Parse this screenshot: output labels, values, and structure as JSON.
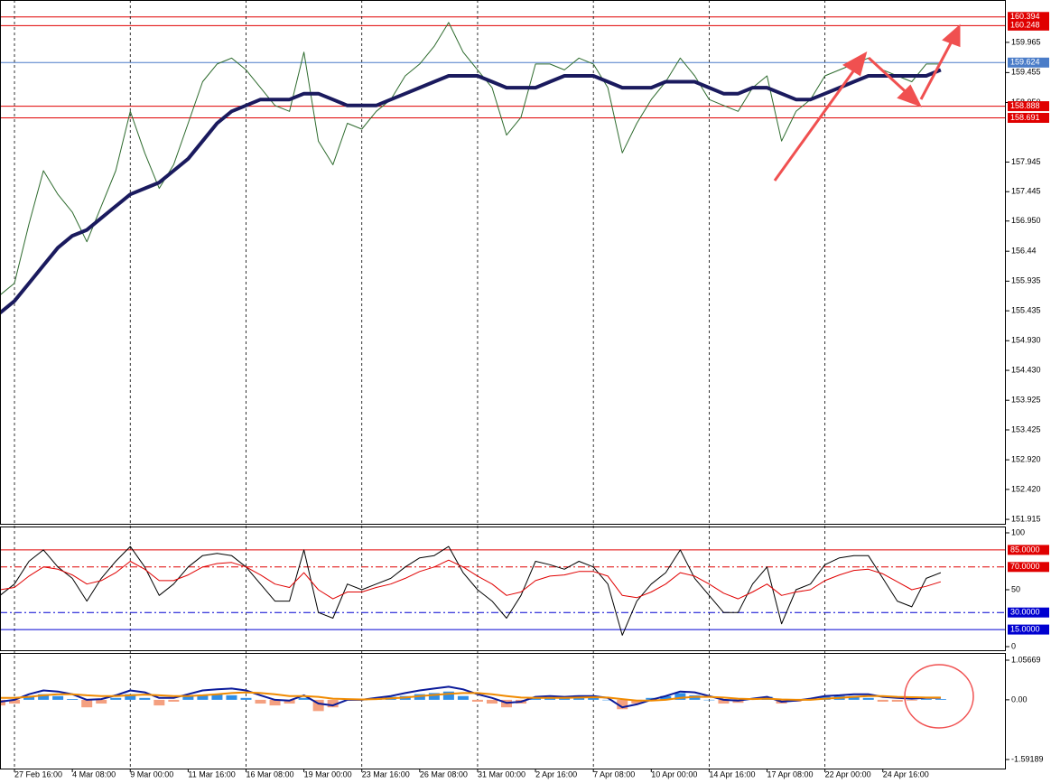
{
  "chart_data": [
    {
      "type": "line",
      "xlim": [
        0,
        69.5
      ],
      "ylim": [
        151.84,
        160.68
      ],
      "grid": true,
      "yticks": [
        159.965,
        159.455,
        {
          "value": 158.95,
          "label": "158.950"
        },
        157.945,
        157.445,
        {
          "value": 156.95,
          "label": "156.950"
        },
        156.44,
        155.935,
        155.435,
        {
          "value": 154.93,
          "label": "154.930"
        },
        {
          "value": 154.43,
          "label": "154.430"
        },
        153.925,
        153.425,
        {
          "value": 152.92,
          "label": "152.920"
        },
        {
          "value": 152.42,
          "label": "152.420"
        },
        151.915
      ],
      "xticks": [
        {
          "value": 1,
          "label": "27 Feb 16:00"
        },
        {
          "value": 5,
          "label": "4 Mar 08:00"
        },
        {
          "value": 9,
          "label": "9 Mar 00:00"
        },
        {
          "value": 13,
          "label": "11 Mar 16:00"
        },
        {
          "value": 17,
          "label": "16 Mar 08:00"
        },
        {
          "value": 21,
          "label": "19 Mar 00:00"
        },
        {
          "value": 25,
          "label": "23 Mar 16:00"
        },
        {
          "value": 29,
          "label": "26 Mar 08:00"
        },
        {
          "value": 33,
          "label": "31 Mar 00:00"
        },
        {
          "value": 37,
          "label": "2 Apr 16:00"
        },
        {
          "value": 41,
          "label": "7 Apr 08:00"
        },
        {
          "value": 45,
          "label": "10 Apr 00:00"
        },
        {
          "value": 49,
          "label": "14 Apr 16:00"
        },
        {
          "value": 53,
          "label": "17 Apr 08:00"
        },
        {
          "value": 57,
          "label": "22 Apr 00:00"
        },
        {
          "value": 61,
          "label": "24 Apr 16:00"
        }
      ],
      "levels": [
        {
          "value": 160.394,
          "color": "#e00000"
        },
        {
          "value": 160.248,
          "color": "#e00000"
        },
        {
          "value": 159.624,
          "color": "#4a7cc8"
        },
        {
          "value": 158.888,
          "color": "#e00000"
        },
        {
          "value": 158.691,
          "color": "#e00000"
        }
      ],
      "series": [
        {
          "color": "#2e6b2e",
          "width": 1,
          "values": [
            155.7,
            155.9,
            156.9,
            157.8,
            157.4,
            157.1,
            156.6,
            157.2,
            157.8,
            158.8,
            158.1,
            157.5,
            157.9,
            158.6,
            159.3,
            159.6,
            159.7,
            159.5,
            159.2,
            158.9,
            158.8,
            159.8,
            158.3,
            157.9,
            158.6,
            158.5,
            158.8,
            159.0,
            159.4,
            159.6,
            159.9,
            160.3,
            159.8,
            159.5,
            159.2,
            158.4,
            158.7,
            159.6,
            159.6,
            159.5,
            159.7,
            159.6,
            159.2,
            158.1,
            158.6,
            159.0,
            159.3,
            159.7,
            159.4,
            159.0,
            158.9,
            158.8,
            159.2,
            159.4,
            158.3,
            158.8,
            159.0,
            159.4,
            159.5,
            159.6,
            159.7,
            159.5,
            159.4,
            159.3,
            159.6,
            159.6
          ]
        },
        {
          "color": "#1a1a5e",
          "width": 4,
          "values": [
            155.4,
            155.6,
            155.9,
            156.2,
            156.5,
            156.7,
            156.8,
            157.0,
            157.2,
            157.4,
            157.5,
            157.6,
            157.8,
            158.0,
            158.3,
            158.6,
            158.8,
            158.9,
            159.0,
            159.0,
            159.0,
            159.1,
            159.1,
            159.0,
            158.9,
            158.9,
            158.9,
            159.0,
            159.1,
            159.2,
            159.3,
            159.4,
            159.4,
            159.4,
            159.3,
            159.2,
            159.2,
            159.2,
            159.3,
            159.4,
            159.4,
            159.4,
            159.3,
            159.2,
            159.2,
            159.2,
            159.3,
            159.3,
            159.3,
            159.2,
            159.1,
            159.1,
            159.2,
            159.2,
            159.1,
            159.0,
            159.0,
            159.1,
            159.2,
            159.3,
            159.4,
            159.4,
            159.4,
            159.4,
            159.4,
            159.5
          ]
        }
      ]
    },
    {
      "type": "line",
      "xlim": [
        0,
        69.5
      ],
      "ylim": [
        0,
        100
      ],
      "yticks": [
        100,
        50,
        0
      ],
      "levels": [
        {
          "value": 85,
          "label": "85.0000",
          "color": "#e00000",
          "dash": "none"
        },
        {
          "value": 70,
          "label": "70.0000",
          "color": "#e00000",
          "dash": "8 3 2 3"
        },
        {
          "value": 30,
          "label": "30.0000",
          "color": "#0000d0",
          "dash": "8 3 2 3"
        },
        {
          "value": 15,
          "label": "15.0000",
          "color": "#0000d0",
          "dash": "none"
        }
      ],
      "series": [
        {
          "color": "#000000",
          "width": 1,
          "values": [
            45,
            55,
            75,
            85,
            70,
            60,
            40,
            60,
            75,
            88,
            70,
            45,
            55,
            70,
            80,
            82,
            80,
            70,
            55,
            40,
            40,
            85,
            30,
            25,
            55,
            50,
            55,
            60,
            70,
            78,
            80,
            88,
            65,
            50,
            40,
            25,
            45,
            75,
            72,
            68,
            75,
            70,
            55,
            10,
            40,
            55,
            65,
            85,
            60,
            45,
            30,
            30,
            55,
            70,
            20,
            50,
            55,
            72,
            78,
            80,
            80,
            60,
            40,
            35,
            60,
            65
          ]
        },
        {
          "color": "#e00000",
          "width": 1,
          "values": [
            50,
            52,
            62,
            70,
            68,
            63,
            55,
            58,
            65,
            75,
            68,
            58,
            58,
            63,
            70,
            73,
            74,
            70,
            63,
            55,
            52,
            65,
            50,
            42,
            48,
            48,
            52,
            55,
            60,
            66,
            70,
            76,
            70,
            62,
            55,
            45,
            48,
            58,
            62,
            63,
            66,
            66,
            62,
            45,
            43,
            48,
            55,
            65,
            62,
            55,
            47,
            42,
            48,
            55,
            45,
            48,
            50,
            58,
            63,
            67,
            68,
            64,
            57,
            50,
            53,
            57
          ]
        }
      ]
    },
    {
      "type": "line",
      "xlim": [
        0,
        69.5
      ],
      "ylim": [
        -1.59189,
        1.05669
      ],
      "yticks": [
        1.05669,
        {
          "value": 0,
          "label": "0.00"
        },
        -1.59189
      ],
      "levels": [],
      "series": [
        {
          "kind": "bar",
          "color": "#2f8fe8",
          "negative_color": "#f4a080",
          "values": [
            -0.15,
            -0.1,
            0.1,
            0.15,
            0.1,
            0.02,
            -0.2,
            -0.1,
            0.05,
            0.15,
            0.05,
            -0.15,
            -0.05,
            0.1,
            0.12,
            0.14,
            0.12,
            0.05,
            -0.1,
            -0.15,
            -0.1,
            0.05,
            -0.3,
            -0.2,
            0.02,
            0.0,
            0.05,
            0.08,
            0.1,
            0.15,
            0.18,
            0.22,
            0.1,
            -0.05,
            -0.1,
            -0.2,
            -0.1,
            0.05,
            0.06,
            0.05,
            0.08,
            0.07,
            0.0,
            -0.25,
            -0.1,
            0.05,
            0.1,
            0.18,
            0.12,
            0.0,
            -0.1,
            -0.08,
            0.03,
            0.08,
            -0.1,
            -0.05,
            0.02,
            0.08,
            0.1,
            0.1,
            0.05,
            -0.05,
            -0.05,
            -0.02,
            0.02,
            0.02
          ]
        },
        {
          "color": "#0a1a9a",
          "width": 2,
          "values": [
            -0.05,
            0.0,
            0.15,
            0.25,
            0.22,
            0.15,
            0.0,
            0.02,
            0.12,
            0.25,
            0.2,
            0.05,
            0.05,
            0.15,
            0.25,
            0.28,
            0.3,
            0.25,
            0.12,
            0.0,
            -0.02,
            0.12,
            -0.1,
            -0.15,
            0.0,
            0.0,
            0.05,
            0.1,
            0.18,
            0.25,
            0.3,
            0.35,
            0.28,
            0.15,
            0.05,
            -0.08,
            -0.05,
            0.08,
            0.1,
            0.08,
            0.1,
            0.1,
            0.05,
            -0.2,
            -0.12,
            0.0,
            0.1,
            0.22,
            0.2,
            0.1,
            0.0,
            -0.02,
            0.03,
            0.08,
            -0.05,
            -0.02,
            0.03,
            0.1,
            0.12,
            0.15,
            0.15,
            0.08,
            0.05,
            0.03,
            0.05,
            0.05
          ]
        },
        {
          "color": "#f08a00",
          "width": 2,
          "values": [
            0.05,
            0.05,
            0.08,
            0.12,
            0.15,
            0.15,
            0.12,
            0.1,
            0.1,
            0.12,
            0.14,
            0.12,
            0.1,
            0.1,
            0.12,
            0.15,
            0.18,
            0.2,
            0.18,
            0.15,
            0.1,
            0.1,
            0.08,
            0.03,
            0.02,
            0.01,
            0.02,
            0.04,
            0.06,
            0.1,
            0.13,
            0.16,
            0.18,
            0.18,
            0.15,
            0.1,
            0.06,
            0.05,
            0.05,
            0.05,
            0.06,
            0.07,
            0.06,
            0.02,
            -0.02,
            -0.02,
            0.0,
            0.05,
            0.08,
            0.08,
            0.06,
            0.03,
            0.02,
            0.03,
            0.01,
            0.0,
            0.0,
            0.03,
            0.05,
            0.08,
            0.1,
            0.1,
            0.08,
            0.07,
            0.06,
            0.06
          ]
        }
      ]
    }
  ]
}
